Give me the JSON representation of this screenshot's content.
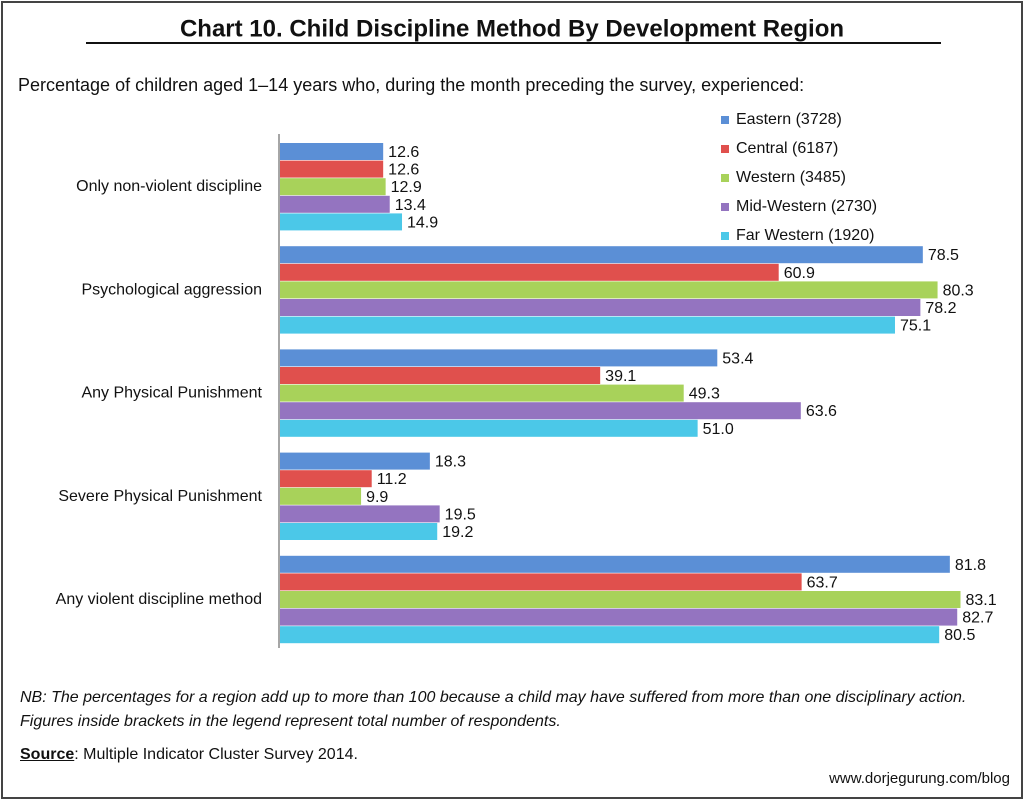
{
  "chart_data": {
    "type": "hbar",
    "title": "Chart 10. Child Discipline Method By Development Region",
    "subtitle": "Percentage of children aged 1–14 years who, during the month preceding the survey, experienced:",
    "categories": [
      "Only non-violent discipline",
      "Psychological aggression",
      "Any Physical Punishment",
      "Severe Physical Punishment",
      "Any violent discipline method"
    ],
    "series": [
      {
        "name": "Eastern (3728)",
        "color": "#5b8fd6",
        "values": [
          12.6,
          78.5,
          53.4,
          18.3,
          81.8
        ]
      },
      {
        "name": "Central (6187)",
        "color": "#e0504d",
        "values": [
          12.6,
          60.9,
          39.1,
          11.2,
          63.7
        ]
      },
      {
        "name": "Western (3485)",
        "color": "#a8d25a",
        "values": [
          12.9,
          80.3,
          49.3,
          9.9,
          83.1
        ]
      },
      {
        "name": "Mid-Western (2730)",
        "color": "#9474c0",
        "values": [
          13.4,
          78.2,
          63.6,
          19.5,
          82.7
        ]
      },
      {
        "name": "Far Western (1920)",
        "color": "#4bc8e8",
        "values": [
          14.9,
          75.1,
          51.0,
          19.2,
          80.5
        ],
        "value_labels": [
          "14.9",
          "75.1",
          "51.0",
          "19.2",
          "80.5"
        ]
      }
    ],
    "xlim": [
      0,
      90
    ],
    "legend": "upper right",
    "note": "NB: The percentages for a region add up to more than 100 because a child may have suffered from more than one disciplinary action. Figures inside brackets in the legend represent total number of respondents.",
    "source_label": "Source",
    "source_text": ": Multiple Indicator Cluster Survey 2014.",
    "credit": "www.dorjegurung.com/blog"
  }
}
